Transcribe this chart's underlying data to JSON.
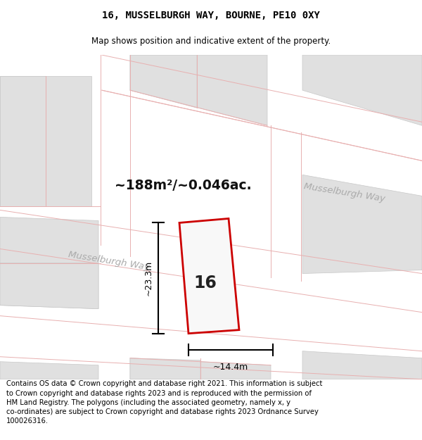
{
  "title_line1": "16, MUSSELBURGH WAY, BOURNE, PE10 0XY",
  "title_line2": "Map shows position and indicative extent of the property.",
  "footer_text": "Contains OS data © Crown copyright and database right 2021. This information is subject to Crown copyright and database rights 2023 and is reproduced with the permission of HM Land Registry. The polygons (including the associated geometry, namely x, y co-ordinates) are subject to Crown copyright and database rights 2023 Ordnance Survey 100026316.",
  "area_text": "~188m²/~0.046ac.",
  "street_label_lower": "Musselburgh Way",
  "street_label_upper": "Musselburgh Way",
  "plot_label": "16",
  "dim_width": "~14.4m",
  "dim_height": "~23.3m",
  "map_bg": "#f2f2f2",
  "block_color": "#e0e0e0",
  "block_edge": "#c8c8c8",
  "road_color": "#f8f8f8",
  "plot_fill": "#f8f8f8",
  "plot_edge": "#cc0000",
  "road_line_color": "#e8b0b0",
  "dim_color": "#111111",
  "area_fontsize": 14,
  "street_fontsize": 10,
  "label_fontsize": 18
}
